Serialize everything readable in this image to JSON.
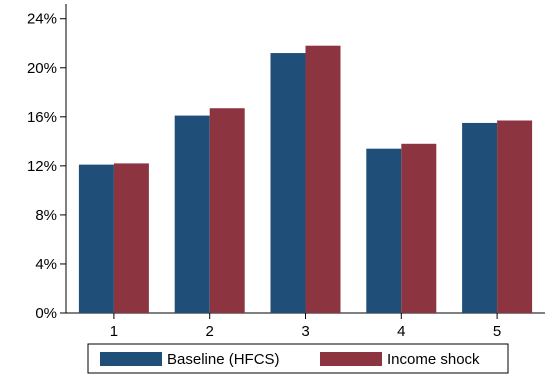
{
  "chart_data": {
    "type": "bar",
    "categories": [
      "1",
      "2",
      "3",
      "4",
      "5"
    ],
    "series": [
      {
        "name": "Baseline (HFCS)",
        "values": [
          12.1,
          16.1,
          21.2,
          13.4,
          15.5
        ],
        "color": "#1f4e79"
      },
      {
        "name": "Income shock",
        "values": [
          12.2,
          16.7,
          21.8,
          13.8,
          15.7
        ],
        "color": "#8c3540"
      }
    ],
    "y_ticks": [
      0,
      4,
      8,
      12,
      16,
      20,
      24
    ],
    "y_tick_labels": [
      "0%",
      "4%",
      "8%",
      "12%",
      "16%",
      "20%",
      "24%"
    ],
    "ylim": [
      0,
      25.2
    ],
    "title": "",
    "xlabel": "",
    "ylabel": "",
    "grid": false,
    "legend_position": "bottom"
  }
}
